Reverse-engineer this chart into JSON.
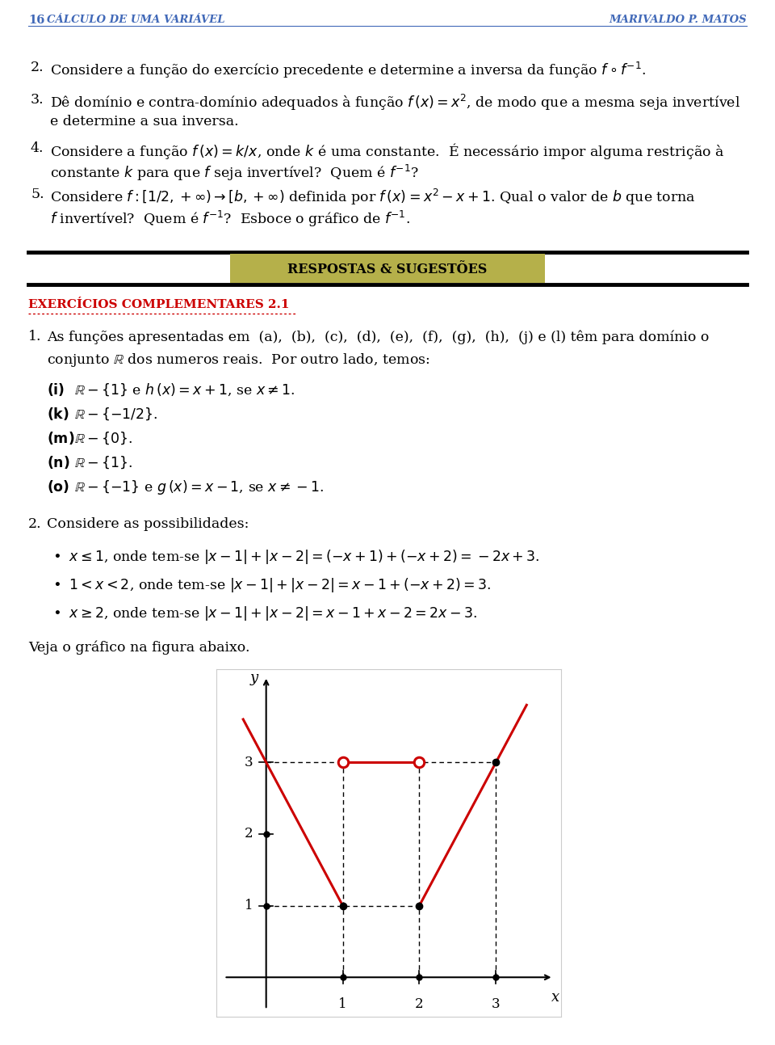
{
  "page_num": "16",
  "header_left": "CÁLCULO DE UMA VARIÁVEL",
  "header_right": "MARIVALDO P. MATOS",
  "header_color": "#4169b8",
  "bg_color": "#ffffff",
  "section_label": "RESPOSTAS & SUGESTÕES",
  "section_bg": "#b5b04a",
  "complementares_label": "EXERCÍCIOS COMPLEMENTARES 2.1",
  "complementares_color": "#cc0000",
  "graph_line_color": "#cc0000",
  "graph_dot_color": "#000000"
}
